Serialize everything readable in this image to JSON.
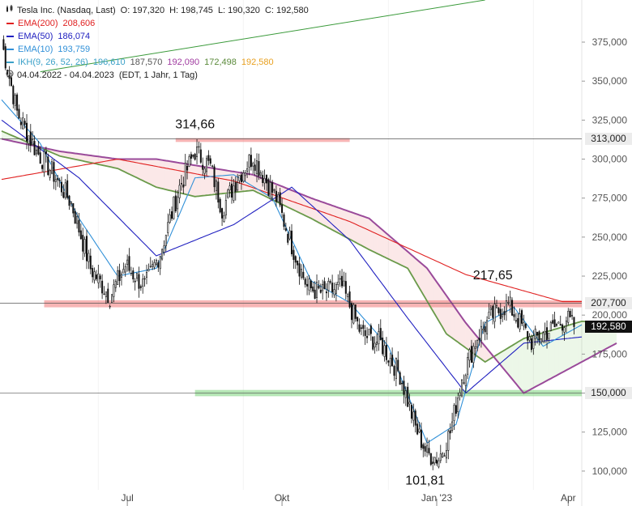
{
  "header": {
    "instrument": "Tesla Inc. (Nasdaq, Last)",
    "ohlc": {
      "open": "O: 197,320",
      "high": "H: 198,745",
      "low": "L: 190,320",
      "close": "C: 192,580"
    },
    "period": "04.04.2022 - 04.04.2023",
    "settings": "(EDT, 1 Jahr, 1 Tag)"
  },
  "indicators": [
    {
      "label": "EMA(200)",
      "value": "208,606",
      "color": "#e02020"
    },
    {
      "label": "EMA(50)",
      "value": "186,074",
      "color": "#2020c0"
    },
    {
      "label": "EMA(10)",
      "value": "193,759",
      "color": "#3090d8"
    }
  ],
  "ichimoku": {
    "label": "IKH(9, 26, 52, 26)",
    "values": [
      {
        "value": "196,610",
        "color": "#3aa0c8"
      },
      {
        "value": "187,570",
        "color": "#555555"
      },
      {
        "value": "192,090",
        "color": "#a03aa0"
      },
      {
        "value": "172,498",
        "color": "#5a8a3a"
      },
      {
        "value": "192,580",
        "color": "#e8a020"
      }
    ]
  },
  "icons": {
    "chart_type": "candlestick-icon",
    "calendar": "clock-icon"
  },
  "price_boxes": [
    {
      "label": "313,000",
      "price": 313,
      "bg": "#ececec",
      "fg": "#222222"
    },
    {
      "label": "207,700",
      "price": 207.7,
      "bg": "#ececec",
      "fg": "#222222"
    },
    {
      "label": "192,580",
      "price": 192.58,
      "bg": "#111111",
      "fg": "#ffffff"
    },
    {
      "label": "150,000",
      "price": 150,
      "bg": "#ececec",
      "fg": "#222222"
    }
  ],
  "chart_data": {
    "type": "candlestick",
    "y_ticks": [
      {
        "value": 100,
        "label": "100,000"
      },
      {
        "value": 125,
        "label": "125,000"
      },
      {
        "value": 150,
        "label": "150,000"
      },
      {
        "value": 175,
        "label": "175,000"
      },
      {
        "value": 200,
        "label": "200,000"
      },
      {
        "value": 225,
        "label": "225,000"
      },
      {
        "value": 250,
        "label": "250,000"
      },
      {
        "value": 275,
        "label": "275,000"
      },
      {
        "value": 300,
        "label": "300,000"
      },
      {
        "value": 325,
        "label": "325,000"
      },
      {
        "value": 350,
        "label": "350,000"
      },
      {
        "value": 375,
        "label": "375,000"
      }
    ],
    "x_ticks": [
      "Jul",
      "Okt",
      "Jan '23",
      "Apr"
    ],
    "ylim": [
      88,
      402
    ],
    "zones": [
      {
        "from": 311,
        "to": 313.5,
        "color": "red"
      },
      {
        "from": 205,
        "to": 209.5,
        "color": "red"
      },
      {
        "from": 148,
        "to": 152,
        "color": "green"
      }
    ],
    "horizontal_lines": [
      313,
      207.7,
      150
    ],
    "annotations": [
      {
        "text": "314,66",
        "price": 314.66
      },
      {
        "text": "217,65",
        "price": 217.65
      },
      {
        "text": "101,81",
        "price": 101.81
      }
    ],
    "trendline": {
      "from_price": 356,
      "to_price": 402
    },
    "anchors": [
      {
        "i": 0,
        "price": 375
      },
      {
        "i": 8,
        "price": 330
      },
      {
        "i": 18,
        "price": 305
      },
      {
        "i": 26,
        "price": 292
      },
      {
        "i": 36,
        "price": 272
      },
      {
        "i": 46,
        "price": 230
      },
      {
        "i": 56,
        "price": 212
      },
      {
        "i": 64,
        "price": 232
      },
      {
        "i": 74,
        "price": 218
      },
      {
        "i": 82,
        "price": 240
      },
      {
        "i": 92,
        "price": 282
      },
      {
        "i": 100,
        "price": 305
      },
      {
        "i": 108,
        "price": 295
      },
      {
        "i": 114,
        "price": 268
      },
      {
        "i": 122,
        "price": 288
      },
      {
        "i": 130,
        "price": 302
      },
      {
        "i": 136,
        "price": 288
      },
      {
        "i": 142,
        "price": 275
      },
      {
        "i": 150,
        "price": 245
      },
      {
        "i": 158,
        "price": 218
      },
      {
        "i": 166,
        "price": 214
      },
      {
        "i": 176,
        "price": 218
      },
      {
        "i": 186,
        "price": 188
      },
      {
        "i": 196,
        "price": 182
      },
      {
        "i": 206,
        "price": 162
      },
      {
        "i": 214,
        "price": 128
      },
      {
        "i": 220,
        "price": 111
      },
      {
        "i": 226,
        "price": 108
      },
      {
        "i": 232,
        "price": 125
      },
      {
        "i": 238,
        "price": 160
      },
      {
        "i": 246,
        "price": 186
      },
      {
        "i": 254,
        "price": 200
      },
      {
        "i": 262,
        "price": 207
      },
      {
        "i": 268,
        "price": 195
      },
      {
        "i": 274,
        "price": 183
      },
      {
        "i": 280,
        "price": 188
      },
      {
        "i": 286,
        "price": 192
      },
      {
        "i": 292,
        "price": 198
      },
      {
        "i": 296,
        "price": 192.58
      }
    ],
    "ema200": [
      [
        0,
        287
      ],
      [
        60,
        300
      ],
      [
        120,
        286
      ],
      [
        180,
        260
      ],
      [
        240,
        226
      ],
      [
        290,
        208.6
      ]
    ],
    "ema50": [
      [
        0,
        325
      ],
      [
        40,
        288
      ],
      [
        80,
        238
      ],
      [
        120,
        258
      ],
      [
        150,
        282
      ],
      [
        180,
        248
      ],
      [
        210,
        198
      ],
      [
        240,
        150
      ],
      [
        270,
        182
      ],
      [
        300,
        186
      ]
    ],
    "ema10": [
      [
        0,
        338
      ],
      [
        20,
        310
      ],
      [
        40,
        262
      ],
      [
        60,
        225
      ],
      [
        80,
        230
      ],
      [
        100,
        288
      ],
      [
        120,
        290
      ],
      [
        140,
        275
      ],
      [
        160,
        222
      ],
      [
        180,
        208
      ],
      [
        200,
        180
      ],
      [
        220,
        118
      ],
      [
        235,
        130
      ],
      [
        250,
        195
      ],
      [
        265,
        205
      ],
      [
        280,
        180
      ],
      [
        300,
        193.8
      ]
    ],
    "span_a": [
      [
        0,
        318
      ],
      [
        30,
        302
      ],
      [
        60,
        294
      ],
      [
        80,
        282
      ],
      [
        100,
        276
      ],
      [
        130,
        280
      ],
      [
        160,
        262
      ],
      [
        190,
        242
      ],
      [
        210,
        230
      ],
      [
        230,
        188
      ],
      [
        250,
        170
      ],
      [
        270,
        185
      ],
      [
        300,
        196
      ],
      [
        318,
        195
      ]
    ],
    "span_b": [
      [
        0,
        313
      ],
      [
        30,
        305
      ],
      [
        60,
        300
      ],
      [
        80,
        300
      ],
      [
        100,
        296
      ],
      [
        130,
        290
      ],
      [
        160,
        275
      ],
      [
        190,
        262
      ],
      [
        220,
        230
      ],
      [
        240,
        195
      ],
      [
        270,
        150
      ],
      [
        300,
        170
      ],
      [
        318,
        182
      ]
    ]
  }
}
